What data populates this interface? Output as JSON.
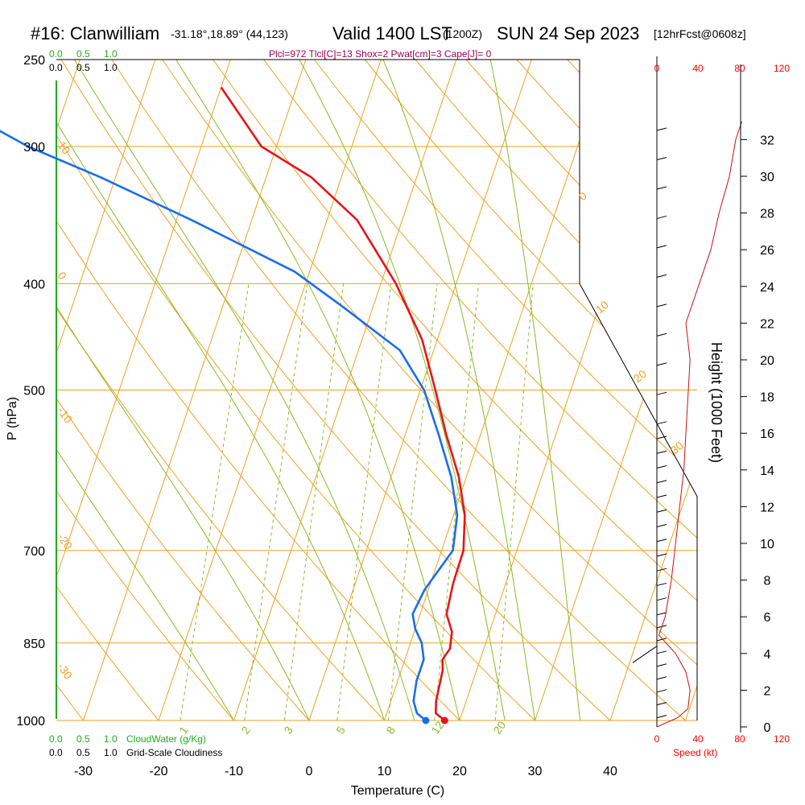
{
  "header": {
    "station": "#16: Clanwilliam",
    "coords": "-31.18°,18.89° (44,123)",
    "valid": "Valid 1400 LST",
    "utc": "(1200Z)",
    "date": "SUN 24 Sep 2023",
    "forecast": "[12hrFcst@0608z]"
  },
  "indices": "Plcl=972 Tlcl[C]=13 Shox=2 Pwat[cm]=3 Cape[J]= 0",
  "colors": {
    "temperature": "#e8141a",
    "dewpoint": "#1a6ee8",
    "isobar": "#f0a020",
    "moist_adiabat": "#88bb22",
    "mixing_ratio": "#88bb22",
    "wind_speed": "#cc1111",
    "cloud": "#22aa22"
  },
  "legend": {
    "cloudwater_ticks_top": [
      "0.0",
      "0.5",
      "1.0"
    ],
    "cloudiness_ticks_top": [
      "0.0",
      "0.5",
      "1.0"
    ],
    "cloudwater_ticks_bottom": [
      "0.0",
      "0.5",
      "1.0"
    ],
    "cloudwater_label": "CloudWater (g/Kg)",
    "cloudiness_ticks_bottom": [
      "0.0",
      "0.5",
      "1.0"
    ],
    "cloudiness_label": "Grid-Scale Cloudiness",
    "speed_label": "Speed (kt)"
  },
  "chart_data": {
    "type": "line",
    "title": "Skew-T log-P sounding",
    "xlabel": "Temperature (C)",
    "ylabel": "P (hPa)",
    "y2label": "Height (1000 Feet)",
    "x_ticks": [
      -30,
      -20,
      -10,
      0,
      10,
      20,
      30,
      40
    ],
    "p_ticks": [
      250,
      300,
      400,
      500,
      700,
      850,
      1000
    ],
    "height_ticks": [
      0,
      2,
      4,
      6,
      8,
      10,
      12,
      14,
      16,
      18,
      20,
      22,
      24,
      26,
      28,
      30,
      32
    ],
    "speed_ticks": [
      0,
      40,
      80,
      120
    ],
    "xlim": [
      -33,
      36
    ],
    "plim": [
      1000,
      250
    ],
    "isotherm_labels": [
      "-30",
      "-20",
      "-10",
      "0",
      "10",
      "20",
      "30"
    ],
    "theta_labels": [
      "10",
      "0",
      "-10",
      "-20",
      "-30"
    ],
    "theta_labels_right": [
      "0",
      "10",
      "20",
      "30"
    ],
    "mixing_ratio_labels": [
      "1",
      "2",
      "3",
      "5",
      "8",
      "12",
      "20"
    ],
    "series": [
      {
        "name": "Temperature",
        "points": [
          [
            18.0,
            1000
          ],
          [
            16.5,
            985
          ],
          [
            16.0,
            960
          ],
          [
            15.5,
            900
          ],
          [
            15.0,
            880
          ],
          [
            15.5,
            860
          ],
          [
            15.0,
            830
          ],
          [
            13.5,
            800
          ],
          [
            13.0,
            750
          ],
          [
            12.9,
            700
          ],
          [
            11.5,
            650
          ],
          [
            9.0,
            600
          ],
          [
            5.5,
            550
          ],
          [
            2.0,
            500
          ],
          [
            -2.0,
            450
          ],
          [
            -8.0,
            400
          ],
          [
            -16.0,
            350
          ],
          [
            -24.0,
            320
          ],
          [
            -32.0,
            300
          ],
          [
            -40.0,
            265
          ]
        ]
      },
      {
        "name": "Dewpoint",
        "points": [
          [
            15.5,
            1000
          ],
          [
            14.0,
            985
          ],
          [
            13.0,
            960
          ],
          [
            12.5,
            920
          ],
          [
            12.5,
            880
          ],
          [
            11.5,
            850
          ],
          [
            10.0,
            825
          ],
          [
            9.0,
            800
          ],
          [
            9.5,
            760
          ],
          [
            11.5,
            700
          ],
          [
            10.5,
            650
          ],
          [
            8.0,
            600
          ],
          [
            4.5,
            550
          ],
          [
            0.5,
            500
          ],
          [
            -4.5,
            460
          ],
          [
            -14.0,
            420
          ],
          [
            -22.0,
            390
          ],
          [
            -38.0,
            350
          ],
          [
            -52.0,
            320
          ],
          [
            -63.0,
            300
          ],
          [
            -70.0,
            285
          ],
          [
            -74.0,
            265
          ]
        ]
      }
    ],
    "surface": {
      "temperature": 18.0,
      "dewpoint": 15.5
    },
    "wind_speed_profile": [
      [
        0,
        0.0
      ],
      [
        0.5,
        20
      ],
      [
        1,
        30
      ],
      [
        2,
        32
      ],
      [
        3,
        28
      ],
      [
        4,
        18
      ],
      [
        5,
        2
      ],
      [
        6,
        8
      ],
      [
        8,
        14
      ],
      [
        10,
        18
      ],
      [
        12,
        22
      ],
      [
        14,
        26
      ],
      [
        16,
        28
      ],
      [
        18,
        30
      ],
      [
        20,
        32
      ],
      [
        22,
        28
      ],
      [
        24,
        40
      ],
      [
        26,
        52
      ],
      [
        28,
        60
      ],
      [
        30,
        70
      ],
      [
        32,
        76
      ],
      [
        33,
        82
      ]
    ]
  }
}
